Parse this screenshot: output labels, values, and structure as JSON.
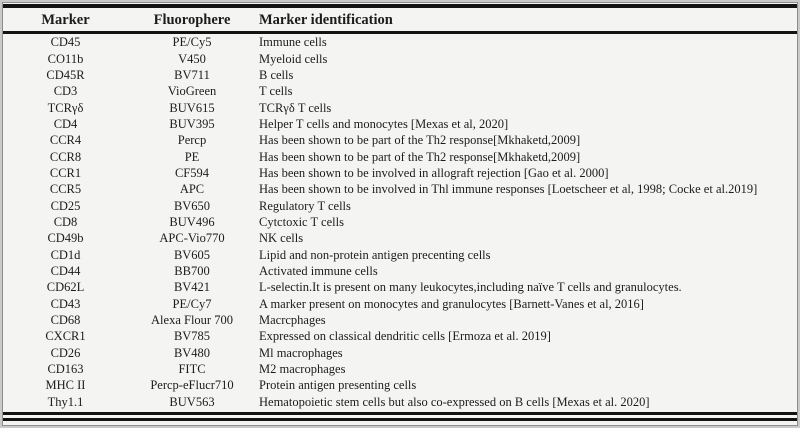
{
  "table": {
    "headers": [
      "Marker",
      "Fluorophere",
      "Marker identification"
    ],
    "rows": [
      {
        "marker": "CD45",
        "fluorophore": "PE/Cy5",
        "identification": "Immune cells"
      },
      {
        "marker": "CO11b",
        "fluorophore": "V450",
        "identification": "Myeloid cells"
      },
      {
        "marker": "CD45R",
        "fluorophore": "BV711",
        "identification": "B cells"
      },
      {
        "marker": "CD3",
        "fluorophore": "VioGreen",
        "identification": "T cells"
      },
      {
        "marker": "TCRγδ",
        "fluorophore": "BUV615",
        "identification": "TCRγδ T cells"
      },
      {
        "marker": "CD4",
        "fluorophore": "BUV395",
        "identification": "Helper T cells and monocytes [Mexas et al, 2020]"
      },
      {
        "marker": "CCR4",
        "fluorophore": "Percp",
        "identification": "Has been shown to be part of the Th2 response[Mkhaketd,2009]"
      },
      {
        "marker": "CCR8",
        "fluorophore": "PE",
        "identification": "Has been shown to be part of the Th2 response[Mkhaketd,2009]"
      },
      {
        "marker": "CCR1",
        "fluorophore": "CF594",
        "identification": "Has been shown to be involved in allograft rejection [Gao et al. 2000]"
      },
      {
        "marker": "CCR5",
        "fluorophore": "APC",
        "identification": "Has been shown to be involved in Thl immune responses [Loetscheer et al, 1998; Cocke et al.2019]"
      },
      {
        "marker": "CD25",
        "fluorophore": "BV650",
        "identification": "Regulatory T cells"
      },
      {
        "marker": "CD8",
        "fluorophore": "BUV496",
        "identification": "Cytctoxic T cells"
      },
      {
        "marker": "CD49b",
        "fluorophore": "APC-Vio770",
        "identification": "NK cells"
      },
      {
        "marker": "CD1d",
        "fluorophore": "BV605",
        "identification": "Lipid and non-protein antigen precenting cells"
      },
      {
        "marker": "CD44",
        "fluorophore": "BB700",
        "identification": "Activated immune cells"
      },
      {
        "marker": "CD62L",
        "fluorophore": "BV421",
        "identification": "L-selectin.It is present on many leukocytes,including naïve T cells and granulocytes."
      },
      {
        "marker": "CD43",
        "fluorophore": "PE/Cy7",
        "identification": "A marker present on monocytes and granulocytes [Barnett-Vanes et al, 2016]"
      },
      {
        "marker": "CD68",
        "fluorophore": "Alexa Flour 700",
        "identification": "Macrcphages"
      },
      {
        "marker": "CXCR1",
        "fluorophore": "BV785",
        "identification": "Expressed on classical dendritic cells [Ermoza et al. 2019]"
      },
      {
        "marker": "CD26",
        "fluorophore": "BV480",
        "identification": "Ml macrophages"
      },
      {
        "marker": "CD163",
        "fluorophore": "FITC",
        "identification": "M2 macrophages"
      },
      {
        "marker": "MHC II",
        "fluorophore": "Percp-eFlucr710",
        "identification": "Protein antigen presenting cells"
      },
      {
        "marker": "Thy1.1",
        "fluorophore": "BUV563",
        "identification": "Hematopoietic stem cells but also co-expressed on B cells [Mexas et al. 2020]"
      }
    ]
  },
  "style": {
    "rule_color": "#131313",
    "background": "#f4f4f2",
    "outer_background": "#c9c9c9",
    "text_color": "#1c1c1c"
  }
}
